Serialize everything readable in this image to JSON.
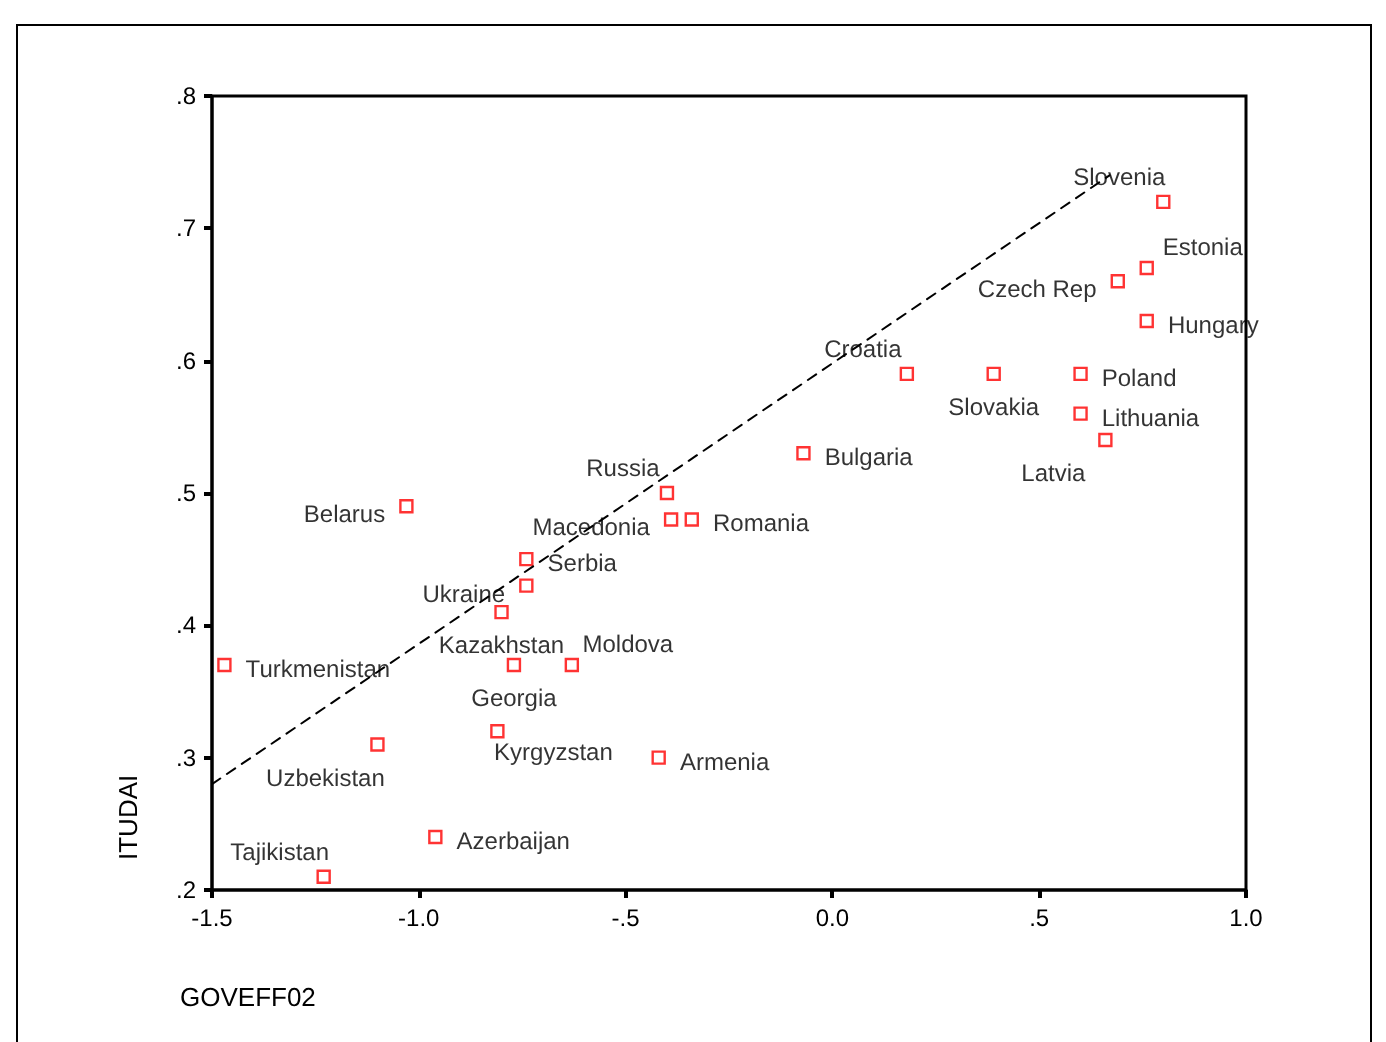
{
  "chart_data": {
    "type": "scatter",
    "xlabel": "GOVEFF02",
    "ylabel": "ITUDAI",
    "xlim": [
      -1.5,
      1.0
    ],
    "xticks": [
      {
        "value": -1.5,
        "label": "-1.5"
      },
      {
        "value": -1.0,
        "label": "-1.0"
      },
      {
        "value": -0.5,
        "label": "-.5"
      },
      {
        "value": 0,
        "label": "0.0"
      },
      {
        "value": 0.5,
        "label": ".5"
      },
      {
        "value": 1.0,
        "label": "1.0"
      }
    ],
    "ylim": [
      0.2,
      0.8
    ],
    "yticks": [
      {
        "value": 0.2,
        "label": ".2"
      },
      {
        "value": 0.3,
        "label": ".3"
      },
      {
        "value": 0.4,
        "label": ".4"
      },
      {
        "value": 0.5,
        "label": ".5"
      },
      {
        "value": 0.6,
        "label": ".6"
      },
      {
        "value": 0.7,
        "label": ".7"
      },
      {
        "value": 0.8,
        "label": ".8"
      }
    ],
    "grid": false,
    "series": [
      {
        "color": "#ff0000",
        "marker": "square",
        "x": [
          -1.03,
          -0.4,
          -0.39,
          -0.34,
          -0.74,
          -0.74,
          -0.8,
          -1.47,
          -0.77,
          -0.63,
          -1.1,
          -0.81,
          -0.42,
          -0.96,
          -1.23,
          0.8,
          0.76,
          0.69,
          0.76,
          0.18,
          0.39,
          0.6,
          0.6,
          0.66,
          -0.07
        ],
        "values": [
          0.49,
          0.5,
          0.48,
          0.48,
          0.45,
          0.43,
          0.41,
          0.37,
          0.37,
          0.37,
          0.31,
          0.32,
          0.3,
          0.24,
          0.21,
          0.72,
          0.67,
          0.66,
          0.63,
          0.59,
          0.59,
          0.59,
          0.56,
          0.54,
          0.53
        ],
        "value_labels": [
          "Belarus",
          "Russia",
          "Macedonia",
          "Romania",
          "Serbia",
          "Ukraine",
          "Kazakhstan",
          "Turkmenistan",
          "Georgia",
          "Moldova",
          "Uzbekistan",
          "Kyrgyzstan",
          "Armenia",
          "Azerbaijan",
          "Tajikistan",
          "Slovenia",
          "Estonia",
          "Czech Rep",
          "Hungary",
          "Croatia",
          "Slovakia",
          "Poland",
          "Lithuania",
          "Latvia",
          "Bulgaria"
        ]
      },
      {
        "type": "line",
        "color": "#000000",
        "marker": "none",
        "line_style": "dashed",
        "x": [
          -1.5,
          0.67
        ],
        "values": [
          0.28,
          0.74
        ]
      }
    ]
  }
}
